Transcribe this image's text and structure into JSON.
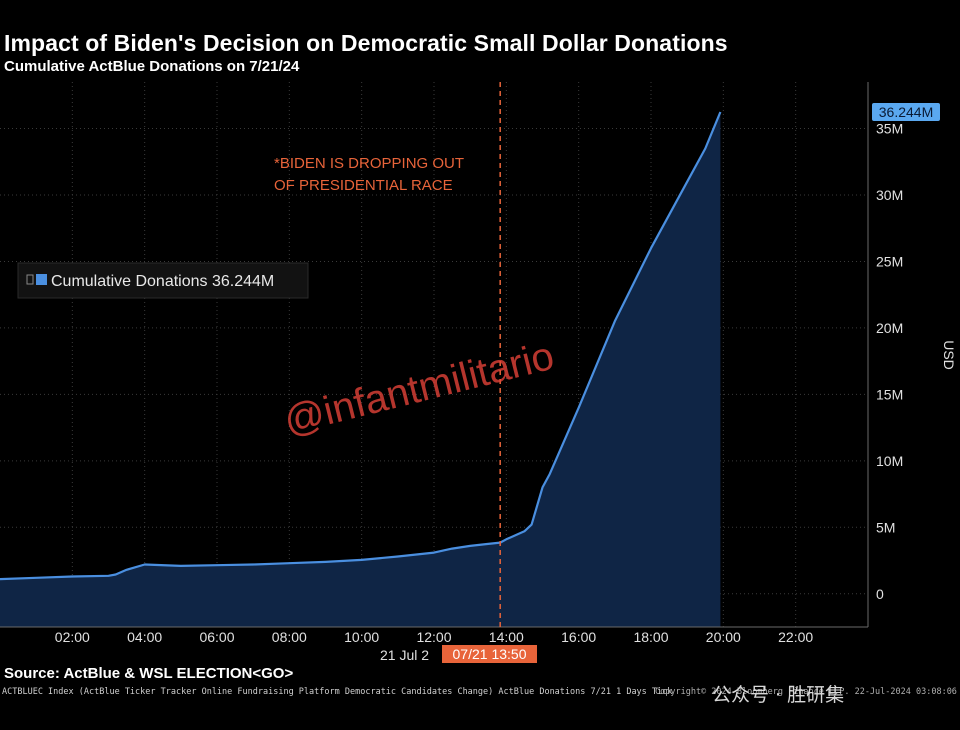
{
  "chart_data": {
    "type": "area",
    "title": "Impact of Biden's Decision on Democratic Small Dollar Donations",
    "subtitle": "Cumulative ActBlue Donations on 7/21/24",
    "ylabel": "USD",
    "ylim": [
      -2.5,
      38.5
    ],
    "y_unit": "M",
    "y_ticks": [
      0,
      5,
      10,
      15,
      20,
      25,
      30,
      35
    ],
    "y_tick_labels": [
      "0",
      "5M",
      "10M",
      "15M",
      "20M",
      "25M",
      "30M",
      "35M"
    ],
    "xlim": [
      0,
      24
    ],
    "x_ticks": [
      2,
      4,
      6,
      8,
      10,
      12,
      14,
      16,
      18,
      20,
      22
    ],
    "x_tick_labels": [
      "02:00",
      "04:00",
      "06:00",
      "08:00",
      "10:00",
      "12:00",
      "14:00",
      "16:00",
      "18:00",
      "20:00",
      "22:00"
    ],
    "x_date_label": "21 Jul 2",
    "cursor_x": 13.83,
    "cursor_label": "07/21 13:50",
    "last_value_label": "36.244M",
    "annotation": {
      "x": 13.83,
      "lines": [
        "*BIDEN IS DROPPING OUT",
        "OF PRESIDENTIAL RACE"
      ]
    },
    "legend": {
      "position": "left",
      "text": "Cumulative Donations 36.244M"
    },
    "series": [
      {
        "name": "Cumulative Donations",
        "color": "#4a8fe0",
        "x": [
          0,
          1,
          2,
          3,
          3.2,
          3.5,
          4,
          5,
          6,
          7,
          8,
          9,
          10,
          11,
          12,
          12.5,
          13,
          13.5,
          13.83,
          14,
          14.5,
          14.7,
          15,
          15.2,
          16,
          17,
          18,
          19,
          19.5,
          19.92
        ],
        "y": [
          1.1,
          1.2,
          1.3,
          1.35,
          1.45,
          1.8,
          2.2,
          2.1,
          2.15,
          2.2,
          2.3,
          2.4,
          2.55,
          2.8,
          3.1,
          3.4,
          3.6,
          3.75,
          3.85,
          4.1,
          4.7,
          5.2,
          8.0,
          9.0,
          14.0,
          20.5,
          26.0,
          31.0,
          33.5,
          36.244
        ]
      }
    ]
  },
  "source_text": "Source: ActBlue & WSL ELECTION<GO>",
  "footer_text": "ACTBLUEC Index (ActBlue Ticker Tracker Online Fundraising Platform Democratic Candidates Change) ActBlue Donations 7/21 1 Days  Tick",
  "copyright_text": "Copyright© 2024 Bloomberg Finance L.P.    22-Jul-2024 03:08:06",
  "watermark_social": "公众号 · 胜研集",
  "watermark_text": "@infantmilitario",
  "colors": {
    "background": "#000000",
    "area_fill": "#0f2545",
    "line": "#4a8fe0",
    "cursor": "#e8643a",
    "annotation": "#e8643a",
    "grid": "#3a3a3a",
    "last_value_bg": "#5aa8f0"
  }
}
